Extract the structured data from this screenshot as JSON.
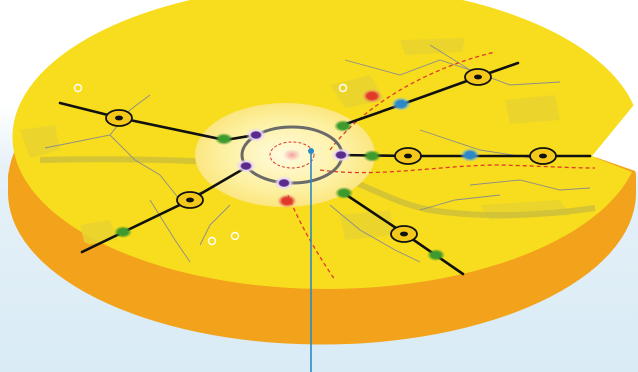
{
  "colors": {
    "background_top": "#ffffff",
    "background_bottom": "#d9ebf5",
    "disc_top": "#f7dd1e",
    "disc_side": "#f2a31b",
    "center_glow": "#fdf2a8",
    "road_line": "#111111",
    "ring_line": "#555555",
    "route_dashed": "#e03a2a",
    "vertical_pin": "#2b88c9",
    "thin_line": "#8c8c8c",
    "map_shading": "#d9c93a"
  },
  "nodes": [
    {
      "type": "hub",
      "color": "black"
    },
    {
      "type": "hub",
      "color": "black"
    },
    {
      "type": "hub",
      "color": "black"
    },
    {
      "type": "hub",
      "color": "black"
    },
    {
      "type": "hub",
      "color": "black"
    },
    {
      "type": "hub",
      "color": "black"
    },
    {
      "type": "hub",
      "color": "black"
    },
    {
      "type": "station",
      "color": "#3f9a2d"
    },
    {
      "type": "station",
      "color": "#3f9a2d"
    },
    {
      "type": "station",
      "color": "#3f9a2d"
    },
    {
      "type": "station",
      "color": "#3f9a2d"
    },
    {
      "type": "station",
      "color": "#3f9a2d"
    },
    {
      "type": "station",
      "color": "#3f9a2d"
    },
    {
      "type": "station",
      "color": "#3f9a2d"
    },
    {
      "type": "station",
      "color": "#5b2a8a"
    },
    {
      "type": "station",
      "color": "#5b2a8a"
    },
    {
      "type": "station",
      "color": "#5b2a8a"
    },
    {
      "type": "station",
      "color": "#5b2a8a"
    },
    {
      "type": "station",
      "color": "#e03a2a"
    },
    {
      "type": "station",
      "color": "#e03a2a"
    },
    {
      "type": "station",
      "color": "#2b88c9"
    },
    {
      "type": "station",
      "color": "#2b88c9"
    }
  ]
}
